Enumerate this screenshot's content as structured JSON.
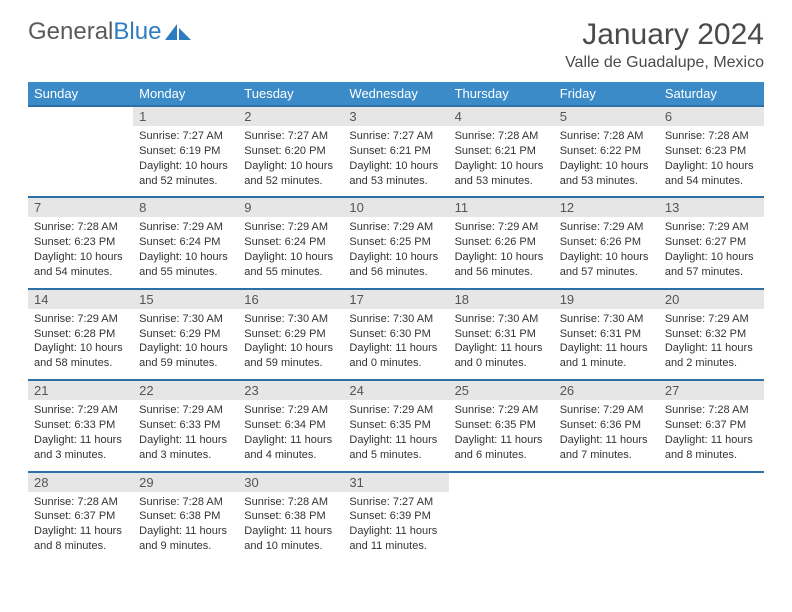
{
  "logo": {
    "text_gray": "General",
    "text_blue": "Blue"
  },
  "title": "January 2024",
  "location": "Valle de Guadalupe, Mexico",
  "colors": {
    "header_bg": "#3b8bc9",
    "header_text": "#ffffff",
    "daynum_bg": "#e6e6e6",
    "row_border": "#2f6fa3",
    "logo_gray": "#5a5a5a",
    "logo_blue": "#2f7dc0"
  },
  "day_headers": [
    "Sunday",
    "Monday",
    "Tuesday",
    "Wednesday",
    "Thursday",
    "Friday",
    "Saturday"
  ],
  "weeks": [
    [
      {
        "n": "",
        "sr": "",
        "ss": "",
        "dl": ""
      },
      {
        "n": "1",
        "sr": "Sunrise: 7:27 AM",
        "ss": "Sunset: 6:19 PM",
        "dl": "Daylight: 10 hours and 52 minutes."
      },
      {
        "n": "2",
        "sr": "Sunrise: 7:27 AM",
        "ss": "Sunset: 6:20 PM",
        "dl": "Daylight: 10 hours and 52 minutes."
      },
      {
        "n": "3",
        "sr": "Sunrise: 7:27 AM",
        "ss": "Sunset: 6:21 PM",
        "dl": "Daylight: 10 hours and 53 minutes."
      },
      {
        "n": "4",
        "sr": "Sunrise: 7:28 AM",
        "ss": "Sunset: 6:21 PM",
        "dl": "Daylight: 10 hours and 53 minutes."
      },
      {
        "n": "5",
        "sr": "Sunrise: 7:28 AM",
        "ss": "Sunset: 6:22 PM",
        "dl": "Daylight: 10 hours and 53 minutes."
      },
      {
        "n": "6",
        "sr": "Sunrise: 7:28 AM",
        "ss": "Sunset: 6:23 PM",
        "dl": "Daylight: 10 hours and 54 minutes."
      }
    ],
    [
      {
        "n": "7",
        "sr": "Sunrise: 7:28 AM",
        "ss": "Sunset: 6:23 PM",
        "dl": "Daylight: 10 hours and 54 minutes."
      },
      {
        "n": "8",
        "sr": "Sunrise: 7:29 AM",
        "ss": "Sunset: 6:24 PM",
        "dl": "Daylight: 10 hours and 55 minutes."
      },
      {
        "n": "9",
        "sr": "Sunrise: 7:29 AM",
        "ss": "Sunset: 6:24 PM",
        "dl": "Daylight: 10 hours and 55 minutes."
      },
      {
        "n": "10",
        "sr": "Sunrise: 7:29 AM",
        "ss": "Sunset: 6:25 PM",
        "dl": "Daylight: 10 hours and 56 minutes."
      },
      {
        "n": "11",
        "sr": "Sunrise: 7:29 AM",
        "ss": "Sunset: 6:26 PM",
        "dl": "Daylight: 10 hours and 56 minutes."
      },
      {
        "n": "12",
        "sr": "Sunrise: 7:29 AM",
        "ss": "Sunset: 6:26 PM",
        "dl": "Daylight: 10 hours and 57 minutes."
      },
      {
        "n": "13",
        "sr": "Sunrise: 7:29 AM",
        "ss": "Sunset: 6:27 PM",
        "dl": "Daylight: 10 hours and 57 minutes."
      }
    ],
    [
      {
        "n": "14",
        "sr": "Sunrise: 7:29 AM",
        "ss": "Sunset: 6:28 PM",
        "dl": "Daylight: 10 hours and 58 minutes."
      },
      {
        "n": "15",
        "sr": "Sunrise: 7:30 AM",
        "ss": "Sunset: 6:29 PM",
        "dl": "Daylight: 10 hours and 59 minutes."
      },
      {
        "n": "16",
        "sr": "Sunrise: 7:30 AM",
        "ss": "Sunset: 6:29 PM",
        "dl": "Daylight: 10 hours and 59 minutes."
      },
      {
        "n": "17",
        "sr": "Sunrise: 7:30 AM",
        "ss": "Sunset: 6:30 PM",
        "dl": "Daylight: 11 hours and 0 minutes."
      },
      {
        "n": "18",
        "sr": "Sunrise: 7:30 AM",
        "ss": "Sunset: 6:31 PM",
        "dl": "Daylight: 11 hours and 0 minutes."
      },
      {
        "n": "19",
        "sr": "Sunrise: 7:30 AM",
        "ss": "Sunset: 6:31 PM",
        "dl": "Daylight: 11 hours and 1 minute."
      },
      {
        "n": "20",
        "sr": "Sunrise: 7:29 AM",
        "ss": "Sunset: 6:32 PM",
        "dl": "Daylight: 11 hours and 2 minutes."
      }
    ],
    [
      {
        "n": "21",
        "sr": "Sunrise: 7:29 AM",
        "ss": "Sunset: 6:33 PM",
        "dl": "Daylight: 11 hours and 3 minutes."
      },
      {
        "n": "22",
        "sr": "Sunrise: 7:29 AM",
        "ss": "Sunset: 6:33 PM",
        "dl": "Daylight: 11 hours and 3 minutes."
      },
      {
        "n": "23",
        "sr": "Sunrise: 7:29 AM",
        "ss": "Sunset: 6:34 PM",
        "dl": "Daylight: 11 hours and 4 minutes."
      },
      {
        "n": "24",
        "sr": "Sunrise: 7:29 AM",
        "ss": "Sunset: 6:35 PM",
        "dl": "Daylight: 11 hours and 5 minutes."
      },
      {
        "n": "25",
        "sr": "Sunrise: 7:29 AM",
        "ss": "Sunset: 6:35 PM",
        "dl": "Daylight: 11 hours and 6 minutes."
      },
      {
        "n": "26",
        "sr": "Sunrise: 7:29 AM",
        "ss": "Sunset: 6:36 PM",
        "dl": "Daylight: 11 hours and 7 minutes."
      },
      {
        "n": "27",
        "sr": "Sunrise: 7:28 AM",
        "ss": "Sunset: 6:37 PM",
        "dl": "Daylight: 11 hours and 8 minutes."
      }
    ],
    [
      {
        "n": "28",
        "sr": "Sunrise: 7:28 AM",
        "ss": "Sunset: 6:37 PM",
        "dl": "Daylight: 11 hours and 8 minutes."
      },
      {
        "n": "29",
        "sr": "Sunrise: 7:28 AM",
        "ss": "Sunset: 6:38 PM",
        "dl": "Daylight: 11 hours and 9 minutes."
      },
      {
        "n": "30",
        "sr": "Sunrise: 7:28 AM",
        "ss": "Sunset: 6:38 PM",
        "dl": "Daylight: 11 hours and 10 minutes."
      },
      {
        "n": "31",
        "sr": "Sunrise: 7:27 AM",
        "ss": "Sunset: 6:39 PM",
        "dl": "Daylight: 11 hours and 11 minutes."
      },
      {
        "n": "",
        "sr": "",
        "ss": "",
        "dl": ""
      },
      {
        "n": "",
        "sr": "",
        "ss": "",
        "dl": ""
      },
      {
        "n": "",
        "sr": "",
        "ss": "",
        "dl": ""
      }
    ]
  ]
}
